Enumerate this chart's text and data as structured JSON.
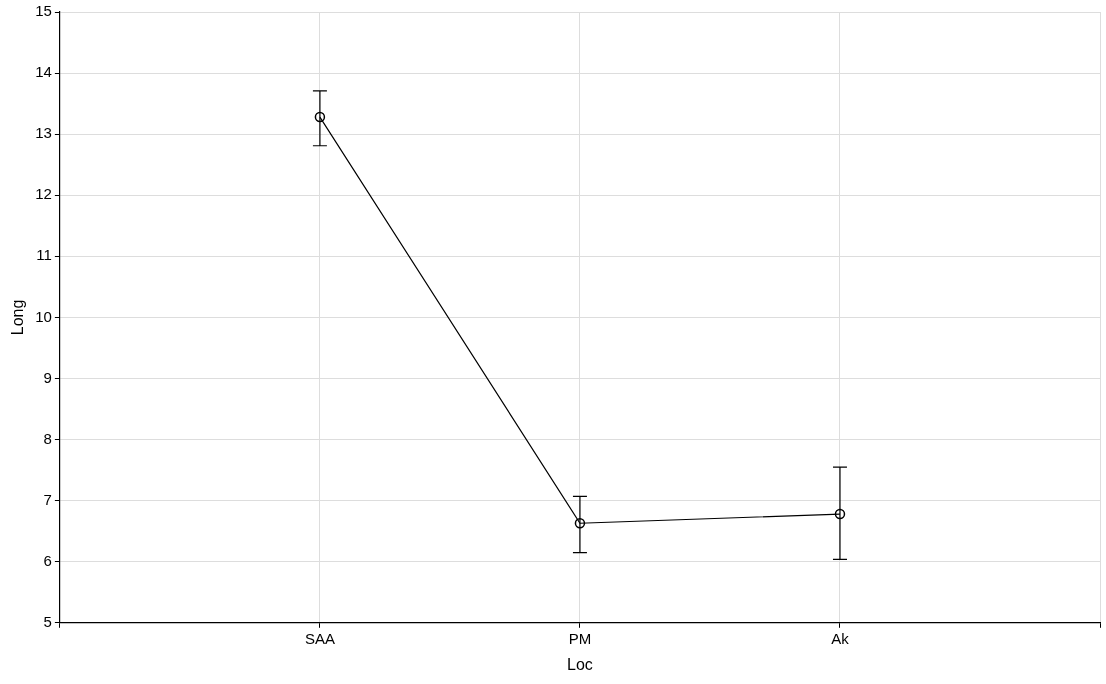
{
  "chart_data": {
    "type": "line",
    "xlabel": "Loc",
    "ylabel": "Long",
    "categories": [
      "SAA",
      "PM",
      "Ak"
    ],
    "series": [
      {
        "color": "#000000",
        "values": [
          13.28,
          6.63,
          6.78
        ],
        "errors": [
          [
            12.81,
            13.71
          ],
          [
            6.15,
            7.07
          ],
          [
            6.04,
            7.55
          ]
        ]
      }
    ],
    "ylim": [
      5,
      15
    ],
    "yticks": [
      5,
      6,
      7,
      8,
      9,
      10,
      11,
      12,
      13,
      14,
      15
    ],
    "grid": true,
    "marker": "circle",
    "line_style": "solid"
  }
}
